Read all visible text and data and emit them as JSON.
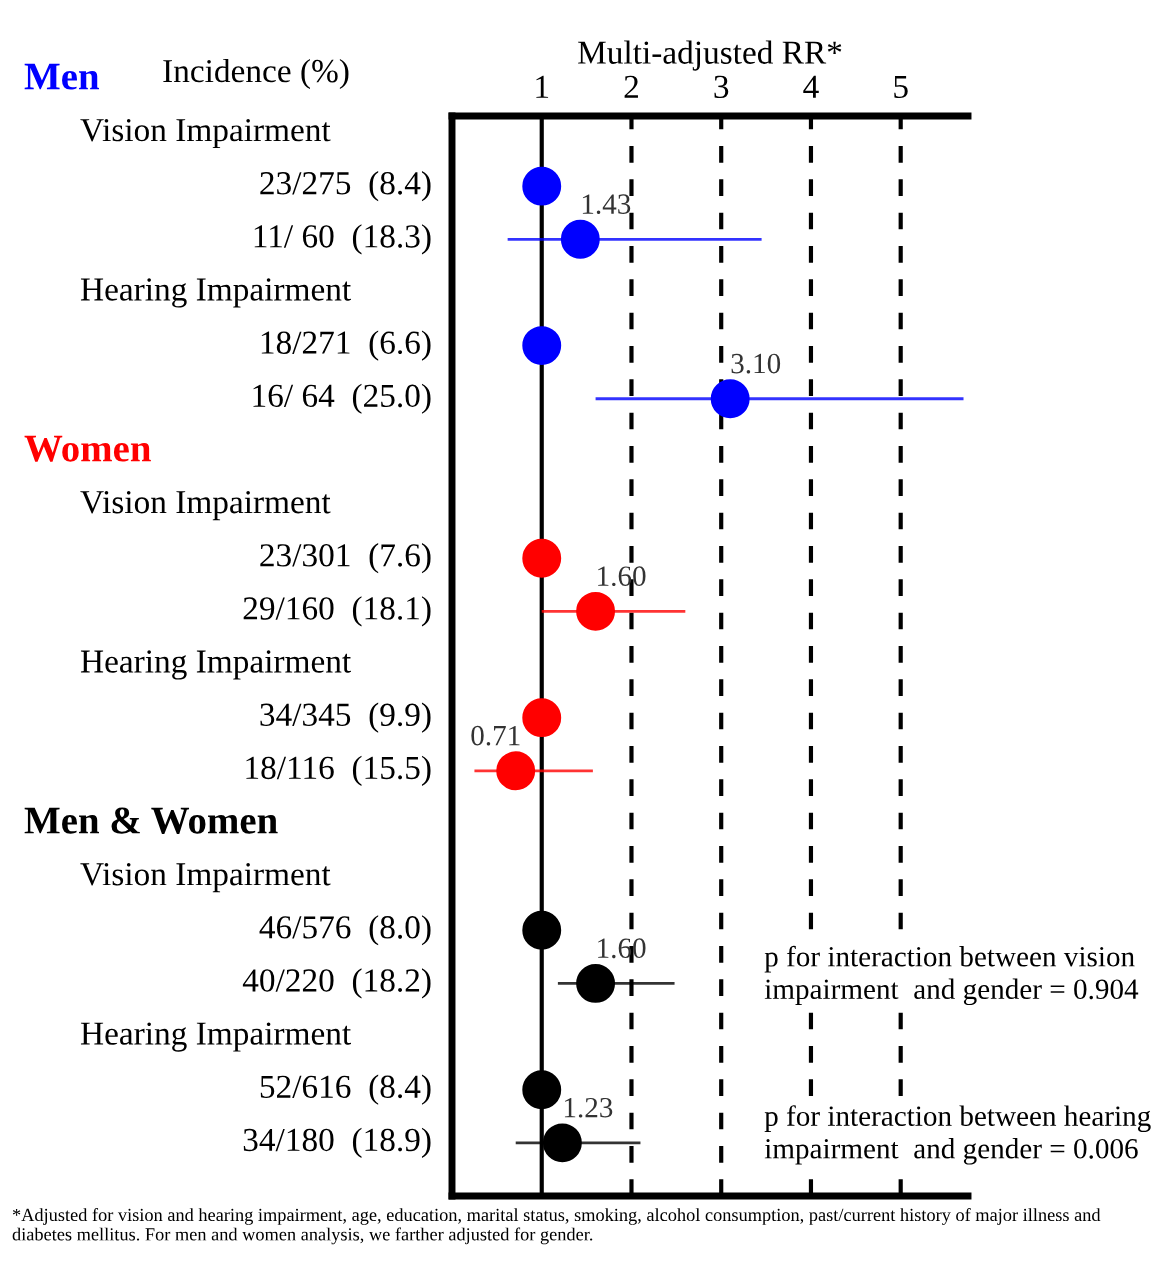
{
  "chart_data": {
    "type": "scatter",
    "orientation": "horizontal",
    "xlabel": "Multi-adjusted RR*",
    "categories": [
      null,
      null,
      "23/275  (8.4)",
      "11/ 60  (18.3)",
      null,
      "18/271  (6.6)",
      "16/ 64  (25.0)",
      null,
      null,
      "23/301  (7.6)",
      "29/160  (18.1)",
      null,
      "34/345  (9.9)",
      "18/116  (15.5)",
      null,
      null,
      "46/576  (8.0)",
      "40/220  (18.2)",
      null,
      "52/616  (8.4)",
      "34/180  (18.9)"
    ],
    "values": [
      null,
      null,
      1,
      1.43,
      null,
      1,
      3.1,
      null,
      null,
      1,
      1.6,
      null,
      1,
      0.71,
      null,
      null,
      1,
      1.6,
      null,
      1,
      1.23
    ],
    "errors": [
      null,
      null,
      null,
      [
        0.62,
        3.45
      ],
      null,
      null,
      [
        1.6,
        5.7
      ],
      null,
      null,
      null,
      [
        1.0,
        2.6
      ],
      null,
      null,
      [
        0.25,
        1.57
      ],
      null,
      null,
      null,
      [
        1.18,
        2.48
      ],
      null,
      null,
      [
        0.71,
        2.1
      ]
    ],
    "value_labels": [
      null,
      null,
      null,
      "1.43",
      null,
      null,
      "3.10",
      null,
      null,
      null,
      "1.60",
      null,
      null,
      "0.71",
      null,
      null,
      null,
      "1.60",
      null,
      null,
      "1.23"
    ],
    "colors": [
      null,
      null,
      "#0000ff",
      "#0000ff",
      null,
      "#0000ff",
      "#0000ff",
      null,
      null,
      "#ff0000",
      "#ff0000",
      null,
      "#ff0000",
      "#ff0000",
      null,
      null,
      "#000000",
      "#000000",
      null,
      "#000000",
      "#000000"
    ],
    "marker": "circle",
    "xlim": [
      0,
      5.75
    ],
    "xticks": [
      1,
      2,
      3,
      4,
      5
    ],
    "ref_lines": [
      {
        "axis": "x",
        "value": 1,
        "line_style": "solid",
        "color": "#000000"
      },
      {
        "axis": "x",
        "value": 2,
        "line_style": "dashed",
        "color": "#000000"
      },
      {
        "axis": "x",
        "value": 3,
        "line_style": "dashed",
        "color": "#000000"
      },
      {
        "axis": "x",
        "value": 4,
        "line_style": "dashed",
        "color": "#000000"
      },
      {
        "axis": "x",
        "value": 5,
        "line_style": "dashed",
        "color": "#000000"
      }
    ],
    "grid": false,
    "annotations": [
      "Incidence (%)",
      "Men",
      "Vision Impairment",
      "Hearing Impairment",
      "Women",
      "Vision Impairment",
      "Hearing Impairment",
      "Men & Women",
      "Vision Impairment",
      "Hearing Impairment",
      "p for interaction between vision\nimpairment  and gender = 0.904",
      "p for interaction between hearing\nimpairment  and gender = 0.006",
      "*Adjusted for vision and hearing impairment, age, education, marital status, smoking, alcohol consumption, past/current history of major illness and diabetes mellitus. For men and women analysis, we farther adjusted for gender."
    ]
  }
}
